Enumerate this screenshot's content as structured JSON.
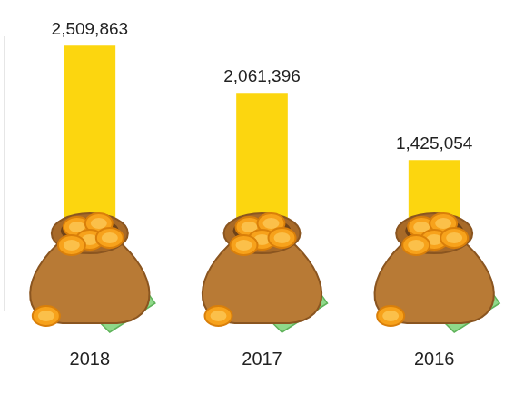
{
  "chart_data": {
    "type": "bar",
    "categories": [
      "2018",
      "2017",
      "2016"
    ],
    "values": [
      2509863,
      2061396,
      1425054
    ],
    "value_labels": [
      "2,509,863",
      "2,061,396",
      "1,425,054"
    ],
    "color": "#fcd60f",
    "ylim": [
      0,
      2600000
    ],
    "grid": false,
    "data_labels": true,
    "tick_labels": "x"
  }
}
